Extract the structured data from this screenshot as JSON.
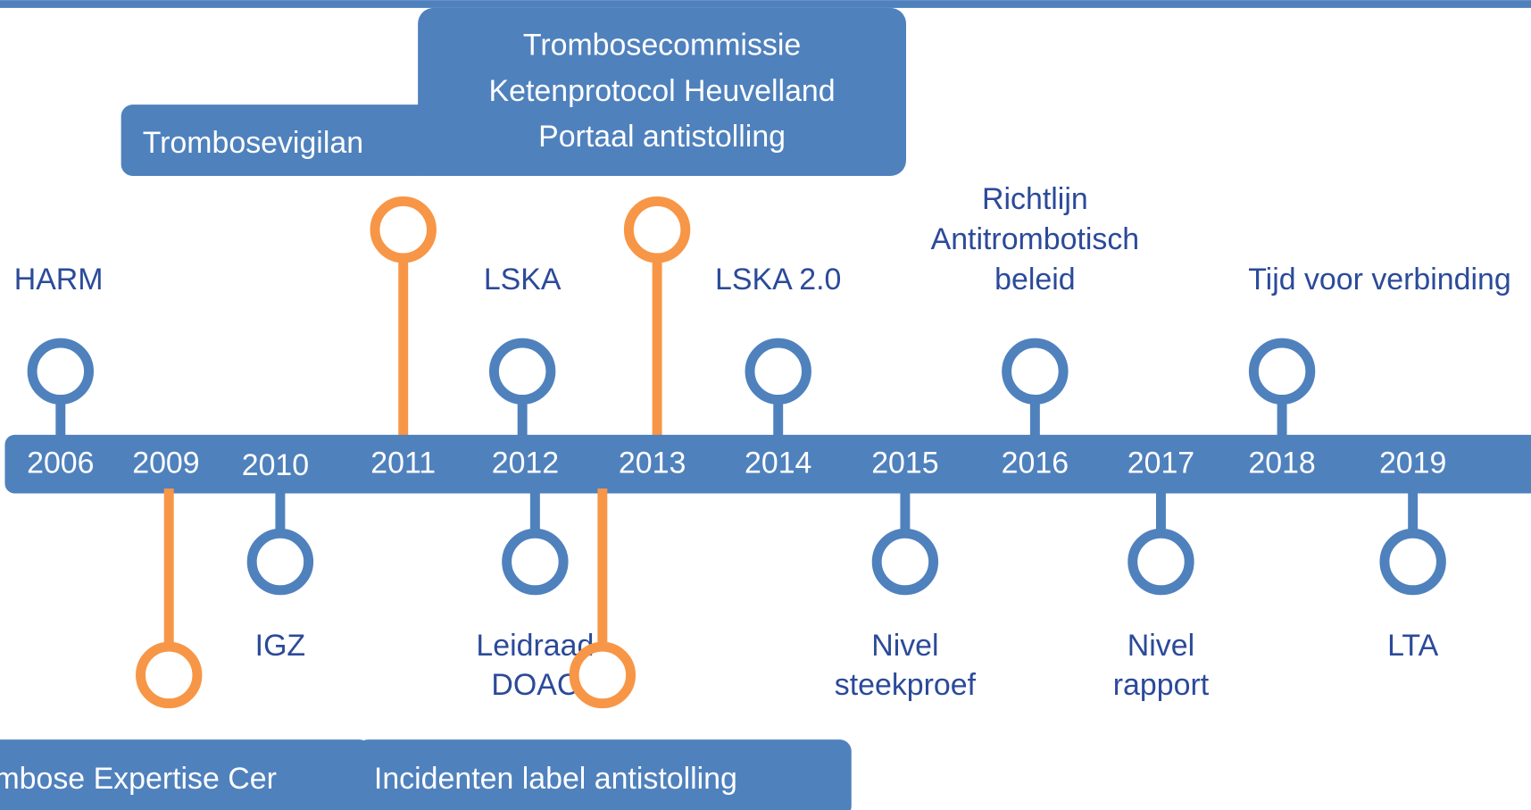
{
  "years": [
    "2006",
    "2009",
    "2010",
    "2011",
    "2012",
    "2013",
    "2014",
    "2015",
    "2016",
    "2017",
    "2018",
    "2019"
  ],
  "top_labels": [
    {
      "lines": [
        "HARM"
      ]
    },
    {
      "lines": [
        "LSKA"
      ]
    },
    {
      "lines": [
        "LSKA 2.0"
      ]
    },
    {
      "lines": [
        "Richtlijn",
        "Antitrombotisch",
        "beleid"
      ]
    },
    {
      "lines": [
        "Tijd voor verbinding"
      ]
    }
  ],
  "bottom_labels": [
    {
      "lines": [
        "IGZ"
      ]
    },
    {
      "lines": [
        "Leidraad",
        "DOAC"
      ]
    },
    {
      "lines": [
        "Nivel",
        "steekproef"
      ]
    },
    {
      "lines": [
        "Nivel",
        "rapport"
      ]
    },
    {
      "lines": [
        "LTA"
      ]
    }
  ],
  "top_boxes": [
    {
      "lines": [
        "Trombosevigilan"
      ]
    },
    {
      "lines": [
        "Trombosecommissie",
        "Ketenprotocol Heuvelland",
        "Portaal antistolling"
      ]
    }
  ],
  "bottom_boxes": [
    {
      "lines": [
        "mbose Expertise Cer"
      ]
    },
    {
      "lines": [
        "Incidenten label antistolling"
      ]
    }
  ]
}
